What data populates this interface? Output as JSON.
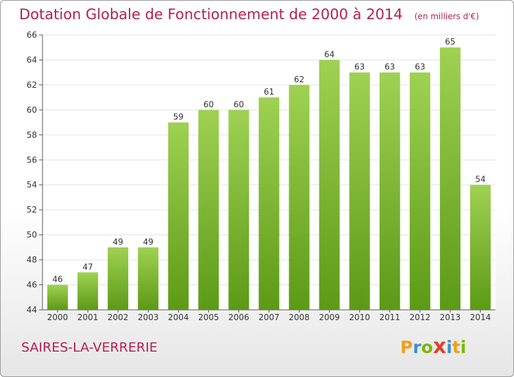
{
  "header": {
    "title": "Dotation Globale de Fonctionnement de 2000 à 2014",
    "unit": "(en milliers d'€)"
  },
  "commune": "SAIRES-LA-VERRERIE",
  "logo": {
    "letters": [
      "P",
      "r",
      "o",
      "x",
      "i",
      "t",
      "i"
    ],
    "colors": [
      "#f0a01a",
      "#3a8fd1",
      "#7ab800",
      "#e0402a",
      "#3a8fd1",
      "#f0a01a",
      "#7ab800"
    ]
  },
  "colors": {
    "accent": "#b31f54",
    "bar_top": "#9fd152",
    "bar_bottom": "#5c9a16",
    "grid": "#e2e2e2"
  },
  "chart_data": {
    "type": "bar",
    "title": "Dotation Globale de Fonctionnement de 2000 à 2014",
    "ylabel": "",
    "xlabel": "",
    "categories": [
      "2000",
      "2001",
      "2002",
      "2003",
      "2004",
      "2005",
      "2006",
      "2007",
      "2008",
      "2009",
      "2010",
      "2011",
      "2012",
      "2013",
      "2014"
    ],
    "values": [
      46,
      47,
      49,
      49,
      59,
      60,
      60,
      61,
      62,
      64,
      63,
      63,
      63,
      65,
      54
    ],
    "ylim": [
      44,
      66
    ],
    "yticks": [
      44,
      46,
      48,
      50,
      52,
      54,
      56,
      58,
      60,
      62,
      64,
      66
    ],
    "grid": true,
    "data_labels": true
  }
}
